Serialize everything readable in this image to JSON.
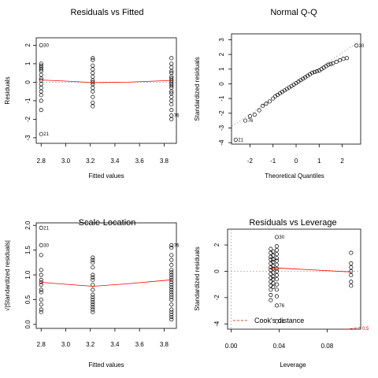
{
  "chart_data": [
    {
      "type": "scatter",
      "title": "Residuals vs Fitted",
      "xlabel": "Fitted values",
      "ylabel": "Residuals",
      "xlim": [
        2.76,
        3.9
      ],
      "ylim": [
        -3.3,
        2.4
      ],
      "xticks": [
        {
          "v": 2.8,
          "t": "2.8"
        },
        {
          "v": 3.0,
          "t": "3.0"
        },
        {
          "v": 3.2,
          "t": "3.2"
        },
        {
          "v": 3.4,
          "t": "3.4"
        },
        {
          "v": 3.6,
          "t": "3.6"
        },
        {
          "v": 3.8,
          "t": "3.8"
        }
      ],
      "yticks": [
        {
          "v": -3,
          "t": "-3"
        },
        {
          "v": -2,
          "t": "-2"
        },
        {
          "v": -1,
          "t": "-1"
        },
        {
          "v": 0,
          "t": "0"
        },
        {
          "v": 1,
          "t": "1"
        },
        {
          "v": 2,
          "t": "2"
        }
      ],
      "groups": [
        {
          "x": 2.8,
          "y": [
            2.0,
            1.0,
            0.9,
            0.8,
            0.7,
            0.6,
            0.4,
            0.2,
            0.1,
            -0.1,
            -0.3,
            -0.5,
            -0.7,
            -1.0,
            -1.5,
            -2.8
          ]
        },
        {
          "x": 3.22,
          "y": [
            1.3,
            1.2,
            0.9,
            0.7,
            0.5,
            0.3,
            0.1,
            0.0,
            -0.1,
            -0.3,
            -0.5,
            -0.8,
            -1.1,
            -1.3
          ]
        },
        {
          "x": 3.86,
          "y": [
            1.3,
            1.0,
            0.8,
            0.6,
            0.5,
            0.3,
            0.2,
            0.1,
            0.0,
            -0.1,
            -0.2,
            -0.3,
            -0.5,
            -0.6,
            -0.8,
            -1.0,
            -1.2,
            -1.5,
            -1.8,
            -2.0
          ]
        }
      ],
      "smooth": [
        [
          2.8,
          0.12
        ],
        [
          3.0,
          0.06
        ],
        [
          3.22,
          -0.02
        ],
        [
          3.5,
          0.0
        ],
        [
          3.86,
          0.1
        ]
      ],
      "ref_line": 0,
      "labels": [
        {
          "x": 2.8,
          "y": 2.0,
          "text": "30"
        },
        {
          "x": 2.8,
          "y": -2.8,
          "text": "21"
        },
        {
          "x": 3.86,
          "y": -1.8,
          "text": "76"
        }
      ]
    },
    {
      "type": "scatter",
      "title": "Normal Q-Q",
      "xlabel": "Theoretical Quantiles",
      "ylabel": "Standardized residuals",
      "xlim": [
        -2.8,
        2.8
      ],
      "ylim": [
        -4.1,
        3.4
      ],
      "xticks": [
        {
          "v": -2,
          "t": "-2"
        },
        {
          "v": -1,
          "t": "-1"
        },
        {
          "v": 0,
          "t": "0"
        },
        {
          "v": 1,
          "t": "1"
        },
        {
          "v": 2,
          "t": "2"
        }
      ],
      "yticks": [
        {
          "v": -4,
          "t": "-4"
        },
        {
          "v": -3,
          "t": "-3"
        },
        {
          "v": -2,
          "t": "-2"
        },
        {
          "v": -1,
          "t": "-1"
        },
        {
          "v": 0,
          "t": "0"
        },
        {
          "v": 1,
          "t": "1"
        },
        {
          "v": 2,
          "t": "2"
        },
        {
          "v": 3,
          "t": "3"
        }
      ],
      "points": [
        [
          -2.62,
          -3.8
        ],
        [
          -2.2,
          -2.5
        ],
        [
          -2.0,
          -2.2
        ],
        [
          -1.8,
          -2.1
        ],
        [
          -1.6,
          -1.8
        ],
        [
          -1.45,
          -1.5
        ],
        [
          -1.3,
          -1.35
        ],
        [
          -1.15,
          -1.2
        ],
        [
          -1.0,
          -1.0
        ],
        [
          -0.9,
          -0.85
        ],
        [
          -0.8,
          -0.75
        ],
        [
          -0.7,
          -0.65
        ],
        [
          -0.6,
          -0.55
        ],
        [
          -0.5,
          -0.45
        ],
        [
          -0.4,
          -0.35
        ],
        [
          -0.3,
          -0.25
        ],
        [
          -0.2,
          -0.15
        ],
        [
          -0.1,
          -0.05
        ],
        [
          0.0,
          0.05
        ],
        [
          0.1,
          0.15
        ],
        [
          0.2,
          0.25
        ],
        [
          0.3,
          0.35
        ],
        [
          0.4,
          0.45
        ],
        [
          0.5,
          0.55
        ],
        [
          0.6,
          0.65
        ],
        [
          0.7,
          0.75
        ],
        [
          0.8,
          0.8
        ],
        [
          0.9,
          0.85
        ],
        [
          1.0,
          0.9
        ],
        [
          1.1,
          1.0
        ],
        [
          1.2,
          1.1
        ],
        [
          1.3,
          1.2
        ],
        [
          1.4,
          1.3
        ],
        [
          1.5,
          1.35
        ],
        [
          1.6,
          1.4
        ],
        [
          1.75,
          1.5
        ],
        [
          1.9,
          1.6
        ],
        [
          2.05,
          1.7
        ],
        [
          2.2,
          1.75
        ],
        [
          2.62,
          2.6
        ]
      ],
      "ref_line": [
        [
          -2.8,
          -2.9
        ],
        [
          2.8,
          2.95
        ]
      ],
      "labels": [
        {
          "x": 2.62,
          "y": 2.6,
          "text": "30"
        },
        {
          "x": -2.2,
          "y": -2.5,
          "text": "76"
        },
        {
          "x": -2.62,
          "y": -3.8,
          "text": "21"
        }
      ]
    },
    {
      "type": "scatter",
      "title": "Scale-Location",
      "xlabel": "Fitted values",
      "ylabel": "√|Standardized residuals|",
      "xlim": [
        2.76,
        3.9
      ],
      "ylim": [
        -0.08,
        2.05
      ],
      "xticks": [
        {
          "v": 2.8,
          "t": "2.8"
        },
        {
          "v": 3.0,
          "t": "3.0"
        },
        {
          "v": 3.2,
          "t": "3.2"
        },
        {
          "v": 3.4,
          "t": "3.4"
        },
        {
          "v": 3.6,
          "t": "3.6"
        },
        {
          "v": 3.8,
          "t": "3.8"
        }
      ],
      "yticks": [
        {
          "v": 0.0,
          "t": "0.0"
        },
        {
          "v": 0.5,
          "t": "0.5"
        },
        {
          "v": 1.0,
          "t": "1.0"
        },
        {
          "v": 1.5,
          "t": "1.5"
        },
        {
          "v": 2.0,
          "t": "2.0"
        }
      ],
      "groups": [
        {
          "x": 2.8,
          "y": [
            1.95,
            1.6,
            1.4,
            1.1,
            1.0,
            0.9,
            0.85,
            0.8,
            0.7,
            0.65,
            0.5,
            0.4,
            0.3,
            0.25
          ]
        },
        {
          "x": 3.22,
          "y": [
            1.35,
            1.3,
            1.25,
            1.15,
            1.0,
            0.95,
            0.9,
            0.8,
            0.7,
            0.6,
            0.55,
            0.5,
            0.45,
            0.4,
            0.35,
            0.3,
            0.25
          ]
        },
        {
          "x": 3.86,
          "y": [
            1.6,
            1.55,
            1.4,
            1.3,
            1.2,
            1.1,
            1.05,
            1.0,
            0.95,
            0.9,
            0.85,
            0.8,
            0.75,
            0.7,
            0.65,
            0.6,
            0.55,
            0.5,
            0.4,
            0.3,
            0.25,
            0.2,
            0.15,
            0.1
          ]
        }
      ],
      "smooth": [
        [
          2.8,
          0.85
        ],
        [
          3.0,
          0.81
        ],
        [
          3.22,
          0.77
        ],
        [
          3.5,
          0.82
        ],
        [
          3.86,
          0.9
        ]
      ],
      "labels": [
        {
          "x": 2.8,
          "y": 1.95,
          "text": "21"
        },
        {
          "x": 2.8,
          "y": 1.6,
          "text": "30"
        },
        {
          "x": 3.86,
          "y": 1.6,
          "text": "76"
        }
      ]
    },
    {
      "type": "scatter",
      "title": "Residuals vs Leverage",
      "xlabel": "Leverage",
      "ylabel": "Standardized residuals",
      "xlim": [
        -0.003,
        0.108
      ],
      "ylim": [
        -4.4,
        3.2
      ],
      "xticks": [
        {
          "v": 0.0,
          "t": "0.00"
        },
        {
          "v": 0.04,
          "t": "0.04"
        },
        {
          "v": 0.08,
          "t": "0.08"
        }
      ],
      "yticks": [
        {
          "v": -4,
          "t": "-4"
        },
        {
          "v": -2,
          "t": "-2"
        },
        {
          "v": 0,
          "t": "0"
        },
        {
          "v": 2,
          "t": "2"
        }
      ],
      "groups": [
        {
          "x": 0.033,
          "y": [
            1.7,
            1.4,
            1.1,
            0.9,
            0.6,
            0.3,
            0.1,
            -0.2,
            -0.5,
            -0.8,
            -1.1,
            -1.4,
            -1.8,
            -2.2
          ]
        },
        {
          "x": 0.035,
          "y": [
            1.5,
            1.2,
            0.9,
            0.7,
            0.4,
            0.2,
            -0.1,
            -0.4,
            -0.6,
            -0.9,
            -1.2
          ]
        },
        {
          "x": 0.038,
          "y": [
            2.6,
            1.9,
            1.6,
            1.3,
            1.0,
            0.8,
            0.5,
            0.2,
            0.0,
            -0.3,
            -0.6,
            -1.0,
            -1.4,
            -1.9,
            -2.6,
            -3.8
          ]
        },
        {
          "x": 0.1,
          "y": [
            1.4,
            0.6,
            0.3,
            0.0,
            -0.3,
            -0.8,
            -1.1
          ]
        }
      ],
      "smooth": [
        [
          0.033,
          0.15
        ],
        [
          0.038,
          0.25
        ],
        [
          0.1,
          -0.05
        ]
      ],
      "ref_line": 0,
      "cook_label_value": "0.5",
      "cook_curve": [
        [
          0.096,
          -4.4
        ],
        [
          0.106,
          -4.3
        ],
        [
          0.108,
          -4.25
        ]
      ],
      "legend": {
        "text": "Cook's distance",
        "placement": "bottom-left"
      },
      "labels": [
        {
          "x": 0.038,
          "y": 2.6,
          "text": "30"
        },
        {
          "x": 0.038,
          "y": -2.6,
          "text": "76"
        },
        {
          "x": 0.038,
          "y": -3.8,
          "text": "21"
        }
      ]
    }
  ]
}
